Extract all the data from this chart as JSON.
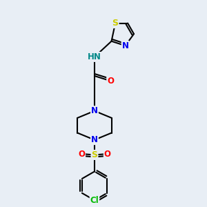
{
  "background_color": "#e8eef5",
  "bond_color": "#000000",
  "bond_width": 1.5,
  "atom_colors": {
    "N": "#0000ee",
    "O": "#ff0000",
    "S_thiazole": "#cccc00",
    "S_sulfonyl": "#cccc00",
    "Cl": "#00bb00",
    "NH": "#008888",
    "C": "#000000"
  },
  "font_size": 8.5,
  "fig_width": 3.0,
  "fig_height": 3.0,
  "xlim": [
    0,
    10
  ],
  "ylim": [
    0,
    10
  ]
}
